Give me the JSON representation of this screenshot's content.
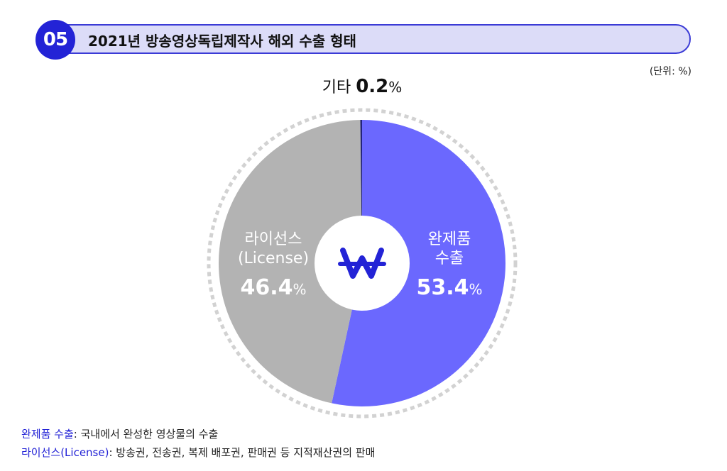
{
  "header": {
    "number": "05",
    "title": "2021년 방송영상독립제작사 해외 수출 형태"
  },
  "unit_note": "(단위: %)",
  "chart_data": {
    "type": "pie",
    "title": "2021년 방송영상독립제작사 해외 수출 형태",
    "unit": "%",
    "donut": true,
    "center_symbol": "₩",
    "slices": [
      {
        "label_lines": [
          "완제품",
          "수출"
        ],
        "value": 53.4,
        "value_label": "53.4",
        "color": "#6b68fe",
        "label_color": "#ffffff"
      },
      {
        "label_lines": [
          "라이선스",
          "(License)"
        ],
        "value": 46.4,
        "value_label": "46.4",
        "color": "#b3b3b3",
        "label_color": "#ffffff"
      },
      {
        "label_lines": [
          "기타"
        ],
        "value": 0.2,
        "value_label": "0.2",
        "color": "#23237a",
        "label_color": "#111111"
      }
    ]
  },
  "legend": [
    {
      "term": "완제품 수출",
      "desc": ": 국내에서 완성한 영상물의 수출"
    },
    {
      "term": "라이선스(License)",
      "desc": ": 방송권, 전송권, 복제 배포권, 판매권 등 지적재산권의 판매"
    }
  ]
}
